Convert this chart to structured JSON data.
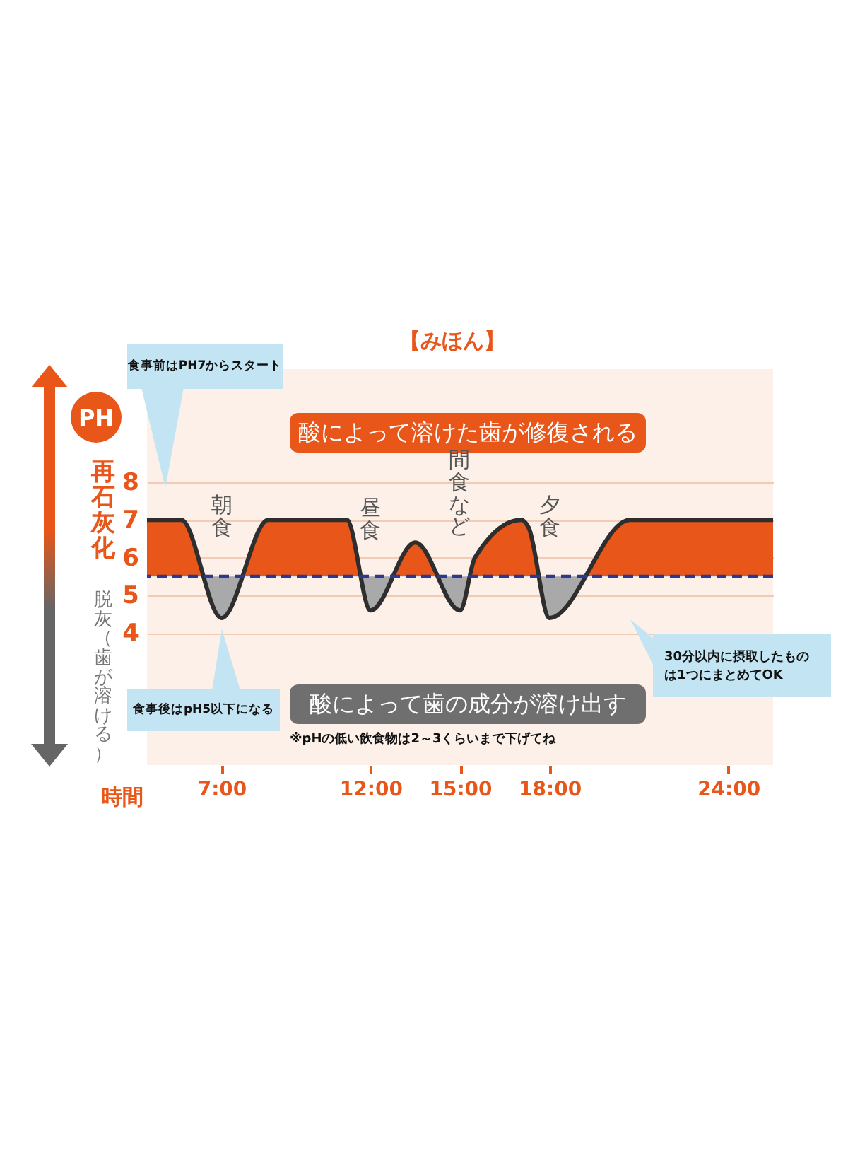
{
  "chart_data": {
    "type": "area",
    "title": "【みほん】",
    "ylabel": "PH",
    "xlabel": "時間",
    "x": [
      4.5,
      5.65,
      7.0,
      8.57,
      11.2,
      12.0,
      13.5,
      15.0,
      15.5,
      17.05,
      17.3,
      18.0,
      20.7,
      25.5
    ],
    "series": [
      {
        "color": "#e8561a",
        "values": [
          7,
          7,
          4.4,
          7,
          7,
          4.6,
          6.4,
          4.6,
          6.0,
          7.0,
          6.8,
          4.4,
          7,
          7
        ]
      }
    ],
    "xlim": [
      4.5,
      25.5
    ],
    "xticks": [
      {
        "value": 7,
        "label": "7:00"
      },
      {
        "value": 12,
        "label": "12:00"
      },
      {
        "value": 15,
        "label": "15:00"
      },
      {
        "value": 18,
        "label": "18:00"
      },
      {
        "value": 24,
        "label": "24:00"
      }
    ],
    "ylim": [
      0.5,
      11
    ],
    "yticks": [
      4,
      5,
      6,
      7,
      8
    ],
    "grid": "y",
    "ref_lines": [
      {
        "axis": "y",
        "value": 5.5,
        "color": "#2b3990",
        "line_style": "dashed"
      }
    ],
    "annotations": [
      "食事前はPH7からスタート",
      "酸によって溶けた歯が修復される",
      "酸によって歯の成分が溶け出す",
      "※pHの低い飲食物は2～3くらいまで下げてね",
      "食事後はpH5以下になる",
      "30分以内に摂取したものは1つにまとめてOK",
      "再石灰化",
      "脱灰（歯が溶ける）",
      "朝食",
      "昼食",
      "間食など",
      "夕食"
    ]
  }
}
